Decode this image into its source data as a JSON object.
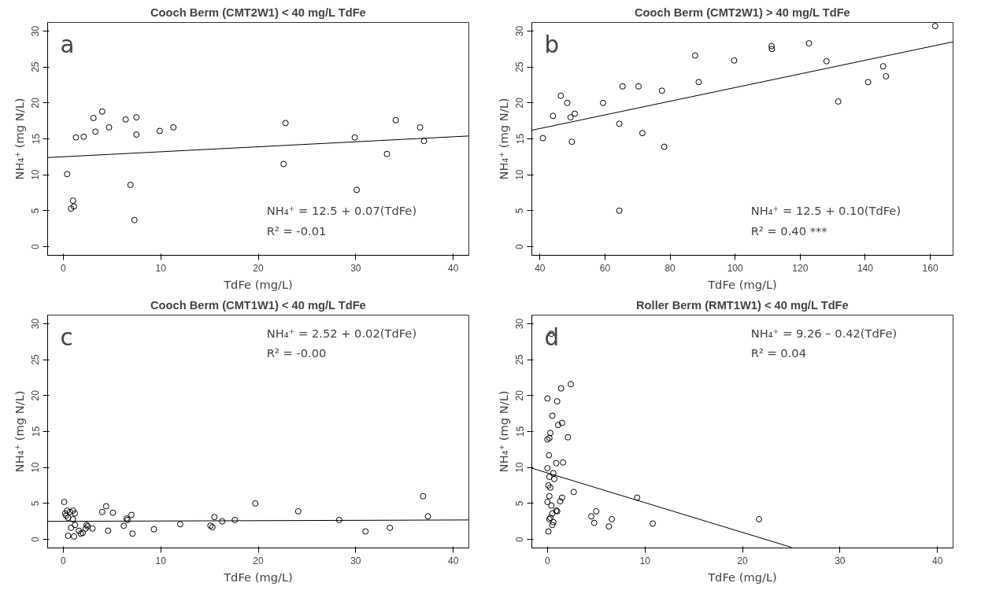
{
  "chart_data": [
    {
      "type": "scatter",
      "title": "Cooch Berm (CMT2W1) < 40 mg/L TdFe",
      "xlabel": "TdFe (mg/L)",
      "ylabel": "NH₄⁺ (mg N/L)",
      "xlim": [
        -1.6,
        41.6
      ],
      "ylim": [
        -1.2,
        31.2
      ],
      "xticks": [
        0,
        10,
        20,
        30,
        40
      ],
      "yticks": [
        0,
        5,
        10,
        15,
        20,
        25,
        30
      ],
      "grid": false,
      "marker": "circle",
      "line_style": "solid",
      "annotations": [
        "a",
        "NH₄⁺ = 12.5 + 0.07(TdFe)",
        "R² = -0.01"
      ],
      "series": [
        {
          "color": "#000000",
          "x": [
            0.4,
            0.8,
            1.1,
            1.0,
            1.3,
            2.1,
            3.1,
            3.3,
            4.0,
            4.7,
            6.4,
            6.9,
            7.3,
            7.5,
            7.5,
            9.9,
            11.3,
            22.6,
            22.8,
            29.9,
            30.1,
            33.2,
            34.1,
            36.6,
            37.0
          ],
          "values": [
            10.1,
            5.3,
            5.6,
            6.4,
            15.2,
            15.3,
            17.9,
            16.0,
            18.8,
            16.6,
            17.7,
            8.6,
            3.7,
            18.0,
            15.6,
            16.1,
            16.6,
            11.5,
            17.2,
            15.2,
            7.9,
            12.9,
            17.6,
            16.6,
            14.7
          ]
        },
        {
          "type": "line",
          "marker": "none",
          "color": "#000000",
          "x": [
            -1.6,
            41.6
          ],
          "values": [
            12.4,
            15.4
          ]
        }
      ]
    },
    {
      "type": "scatter",
      "title": "Cooch Berm (CMT2W1) > 40 mg/L TdFe",
      "xlabel": "TdFe (mg/L)",
      "ylabel": "NH₄⁺ (mg N/L)",
      "xlim": [
        37.5,
        167
      ],
      "ylim": [
        -1.2,
        31.2
      ],
      "xticks": [
        40,
        60,
        80,
        100,
        120,
        140,
        160
      ],
      "yticks": [
        0,
        5,
        10,
        15,
        20,
        25,
        30
      ],
      "grid": false,
      "marker": "circle",
      "line_style": "solid",
      "annotations": [
        "b",
        "NH₄⁺ = 12.5 + 0.10(TdFe)",
        "R² = 0.40 ***"
      ],
      "series": [
        {
          "color": "#000000",
          "x": [
            40.9,
            44.0,
            46.4,
            48.4,
            49.4,
            50.7,
            49.8,
            59.4,
            64.4,
            64.4,
            65.4,
            70.3,
            71.5,
            77.5,
            78.2,
            87.7,
            88.8,
            99.7,
            111.2,
            111.3,
            122.7,
            128.1,
            131.7,
            140.9,
            145.5,
            146.4,
            161.5
          ],
          "values": [
            15.1,
            18.2,
            21.0,
            20.0,
            18.0,
            18.5,
            14.6,
            20.0,
            17.1,
            5.0,
            22.3,
            22.3,
            15.8,
            21.7,
            13.9,
            26.6,
            22.9,
            25.9,
            27.9,
            27.5,
            28.3,
            25.8,
            20.2,
            22.9,
            25.1,
            23.7,
            30.7
          ]
        },
        {
          "type": "line",
          "marker": "none",
          "color": "#000000",
          "x": [
            37.5,
            167
          ],
          "values": [
            16.2,
            28.5
          ]
        }
      ]
    },
    {
      "type": "scatter",
      "title": "Cooch Berm (CMT1W1) < 40 mg/L TdFe",
      "xlabel": "TdFe (mg/L)",
      "ylabel": "NH₄⁺ (mg N/L)",
      "xlim": [
        -1.6,
        41.6
      ],
      "ylim": [
        -1.2,
        31.2
      ],
      "xticks": [
        0,
        10,
        20,
        30,
        40
      ],
      "yticks": [
        0,
        5,
        10,
        15,
        20,
        25,
        30
      ],
      "grid": false,
      "marker": "circle",
      "line_style": "solid",
      "annotations": [
        "c",
        "NH₄⁺ = 2.52 + 0.02(TdFe)",
        "R² = -0.00"
      ],
      "series": [
        {
          "color": "#000000",
          "x": [
            0.1,
            0.2,
            0.3,
            0.4,
            0.5,
            0.5,
            0.7,
            0.8,
            1.0,
            1.0,
            1.1,
            1.2,
            1.2,
            1.6,
            1.8,
            2.0,
            2.3,
            2.4,
            2.5,
            3.0,
            4.0,
            4.4,
            4.6,
            5.1,
            6.2,
            6.5,
            6.6,
            7.0,
            7.1,
            9.3,
            12.0,
            15.1,
            15.3,
            15.5,
            16.3,
            17.6,
            19.7,
            24.1,
            28.3,
            31.0,
            33.5,
            36.9,
            37.4
          ],
          "values": [
            5.2,
            3.6,
            3.3,
            4.0,
            3.0,
            0.5,
            3.8,
            1.6,
            2.8,
            4.0,
            0.4,
            3.6,
            2.0,
            1.2,
            0.8,
            0.9,
            1.5,
            2.0,
            1.8,
            1.5,
            3.8,
            4.6,
            1.2,
            3.7,
            1.9,
            2.9,
            2.7,
            3.4,
            0.8,
            1.4,
            2.1,
            1.9,
            1.7,
            3.1,
            2.5,
            2.7,
            5.0,
            3.9,
            2.7,
            1.1,
            1.6,
            6.0,
            3.2
          ]
        },
        {
          "type": "line",
          "marker": "none",
          "color": "#000000",
          "x": [
            -1.6,
            41.6
          ],
          "values": [
            2.5,
            2.7
          ]
        }
      ]
    },
    {
      "type": "scatter",
      "title": "Roller Berm (RMT1W1) < 40 mg/L TdFe",
      "xlabel": "TdFe (mg/L)",
      "ylabel": "NH₄⁺ (mg N/L)",
      "xlim": [
        -1.6,
        41.6
      ],
      "ylim": [
        -1.2,
        31.2
      ],
      "xticks": [
        0,
        10,
        20,
        30,
        40
      ],
      "yticks": [
        0,
        5,
        10,
        15,
        20,
        25,
        30
      ],
      "grid": false,
      "marker": "circle",
      "line_style": "solid",
      "annotations": [
        "d",
        "NH₄⁺ = 9.26 – 0.42(TdFe)",
        "R² = 0.04"
      ],
      "series": [
        {
          "color": "#000000",
          "x": [
            0.4,
            0.0,
            1.0,
            1.4,
            2.4,
            0.5,
            1.1,
            1.5,
            0.3,
            0.0,
            0.2,
            2.1,
            0.15,
            0.0,
            0.9,
            1.6,
            0.2,
            0.6,
            0.7,
            0.1,
            0.3,
            0.2,
            0.0,
            0.4,
            0.5,
            0.3,
            0.2,
            0.6,
            0.5,
            0.1,
            0.9,
            1.0,
            1.3,
            1.5,
            2.7,
            4.5,
            4.8,
            5.0,
            6.3,
            6.6,
            9.2,
            10.8,
            21.7
          ],
          "values": [
            28.6,
            19.6,
            19.2,
            21.0,
            21.6,
            17.2,
            15.9,
            16.2,
            14.8,
            13.9,
            14.1,
            14.2,
            11.7,
            9.9,
            10.6,
            10.7,
            8.7,
            9.2,
            8.4,
            7.5,
            7.2,
            6.0,
            5.2,
            4.7,
            3.6,
            3.0,
            2.8,
            2.4,
            2.0,
            1.1,
            4.0,
            3.9,
            5.3,
            5.8,
            6.6,
            3.2,
            2.3,
            3.9,
            1.8,
            2.8,
            5.8,
            2.2,
            2.8
          ]
        },
        {
          "type": "line",
          "marker": "none",
          "color": "#000000",
          "x": [
            -1.6,
            25.0
          ],
          "values": [
            9.9,
            -1.1
          ]
        }
      ]
    }
  ]
}
